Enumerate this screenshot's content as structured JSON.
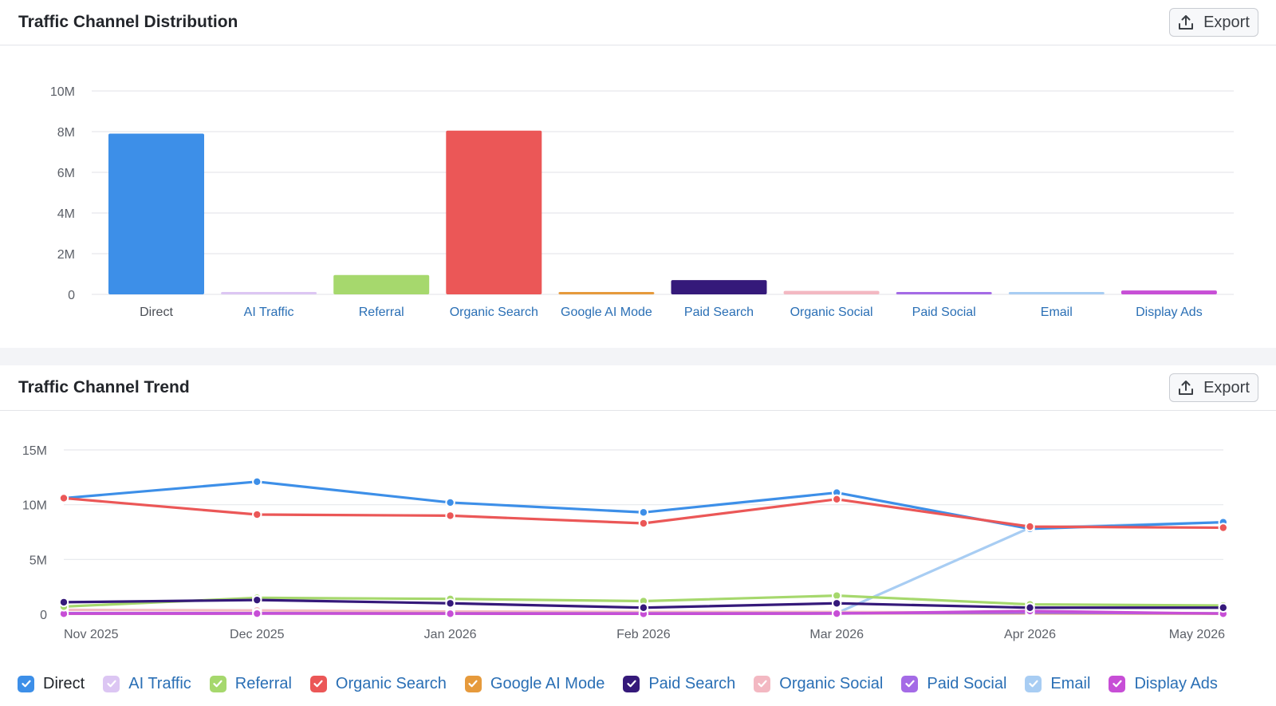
{
  "distribution": {
    "title": "Traffic Channel Distribution",
    "export_label": "Export"
  },
  "trend": {
    "title": "Traffic Channel Trend",
    "export_label": "Export"
  },
  "colors": {
    "Direct": "#3d8fe8",
    "AI Traffic": "#dcc6f3",
    "Referral": "#a6d86d",
    "Organic Search": "#eb5757",
    "Google AI Mode": "#e69a3c",
    "Paid Search": "#35197a",
    "Organic Social": "#f3b8c2",
    "Paid Social": "#a46be6",
    "Email": "#a8cdf3",
    "Display Ads": "#c74ed6"
  },
  "chart_data": [
    {
      "type": "bar",
      "title": "Traffic Channel Distribution",
      "categories": [
        "Direct",
        "AI Traffic",
        "Referral",
        "Organic Search",
        "Google AI Mode",
        "Paid Search",
        "Organic Social",
        "Paid Social",
        "Email",
        "Display Ads"
      ],
      "values": [
        7900000,
        70000,
        950000,
        8050000,
        90000,
        700000,
        170000,
        100000,
        90000,
        190000
      ],
      "ylim": [
        0,
        10000000
      ],
      "yticks": [
        "0",
        "2M",
        "4M",
        "6M",
        "8M",
        "10M"
      ],
      "ytick_values": [
        0,
        2000000,
        4000000,
        6000000,
        8000000,
        10000000
      ],
      "grid": true,
      "legend": "none"
    },
    {
      "type": "line",
      "title": "Traffic Channel Trend",
      "x": [
        "Nov 2025",
        "Dec 2025",
        "Jan 2026",
        "Feb 2026",
        "Mar 2026",
        "Apr 2026",
        "May 2026"
      ],
      "ylim": [
        0,
        15000000
      ],
      "yticks": [
        "0",
        "5M",
        "10M",
        "15M"
      ],
      "ytick_values": [
        0,
        5000000,
        10000000,
        15000000
      ],
      "grid": true,
      "legend": "bottom",
      "series": [
        {
          "name": "Direct",
          "values": [
            10600000,
            12100000,
            10200000,
            9300000,
            11100000,
            7800000,
            8400000
          ]
        },
        {
          "name": "AI Traffic",
          "values": [
            50000,
            70000,
            60000,
            50000,
            80000,
            100000,
            50000
          ]
        },
        {
          "name": "Referral",
          "values": [
            700000,
            1500000,
            1400000,
            1200000,
            1700000,
            900000,
            800000
          ]
        },
        {
          "name": "Organic Search",
          "values": [
            10600000,
            9100000,
            9000000,
            8300000,
            10500000,
            8000000,
            7900000
          ]
        },
        {
          "name": "Google AI Mode",
          "values": [
            60000,
            80000,
            80000,
            70000,
            90000,
            100000,
            60000
          ]
        },
        {
          "name": "Paid Search",
          "values": [
            1100000,
            1300000,
            1000000,
            600000,
            1000000,
            600000,
            600000
          ]
        },
        {
          "name": "Organic Social",
          "values": [
            400000,
            350000,
            250000,
            200000,
            200000,
            150000,
            100000
          ]
        },
        {
          "name": "Paid Social",
          "values": [
            100000,
            100000,
            80000,
            80000,
            100000,
            150000,
            80000
          ]
        },
        {
          "name": "Email",
          "values": [
            100000,
            100000,
            90000,
            80000,
            100000,
            7900000,
            8400000
          ]
        },
        {
          "name": "Display Ads",
          "values": [
            50000,
            60000,
            50000,
            40000,
            60000,
            300000,
            50000
          ]
        }
      ]
    }
  ]
}
